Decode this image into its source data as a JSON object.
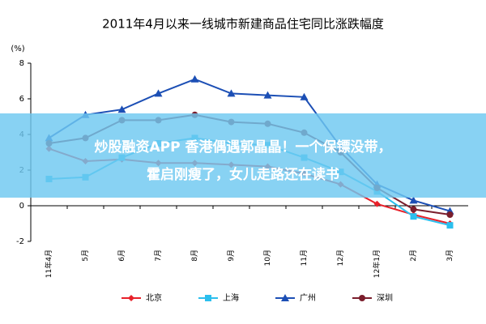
{
  "chart_data": {
    "type": "line",
    "title": "2011年4月以来一线城市新建商品住宅同比涨跌幅度",
    "y_label": "(%)",
    "categories": [
      "11年4月",
      "5月",
      "6月",
      "7月",
      "8月",
      "9月",
      "10月",
      "11月",
      "12月",
      "12年1月",
      "2月",
      "3月"
    ],
    "series": [
      {
        "name": "北京",
        "color": "#e8212a",
        "marker": "diamond",
        "values": [
          3.2,
          2.5,
          2.6,
          2.4,
          2.4,
          2.3,
          2.2,
          1.8,
          1.2,
          0.1,
          -0.5,
          -1.0
        ]
      },
      {
        "name": "上海",
        "color": "#2bbfee",
        "marker": "square",
        "values": [
          1.5,
          1.6,
          2.7,
          3.5,
          3.8,
          3.5,
          3.4,
          2.7,
          1.9,
          0.8,
          -0.6,
          -1.1
        ]
      },
      {
        "name": "广州",
        "color": "#1c4fb5",
        "marker": "triangle",
        "values": [
          3.8,
          5.1,
          5.4,
          6.3,
          7.1,
          6.3,
          6.2,
          6.1,
          3.3,
          1.2,
          0.3,
          -0.3
        ]
      },
      {
        "name": "深圳",
        "color": "#7b1e2c",
        "marker": "circle",
        "values": [
          3.5,
          3.8,
          4.8,
          4.8,
          5.1,
          4.7,
          4.6,
          4.1,
          3.0,
          1.0,
          -0.2,
          -0.5
        ]
      }
    ],
    "ylim": [
      -2,
      8
    ],
    "yticks": [
      -2,
      0,
      2,
      4,
      6,
      8
    ],
    "legend": "bottom"
  },
  "banner": {
    "lines": [
      "炒股融资APP 香港偶遇郭晶晶！一个保镖没带，",
      "霍启刚瘦了，女儿走路还在读书"
    ]
  }
}
